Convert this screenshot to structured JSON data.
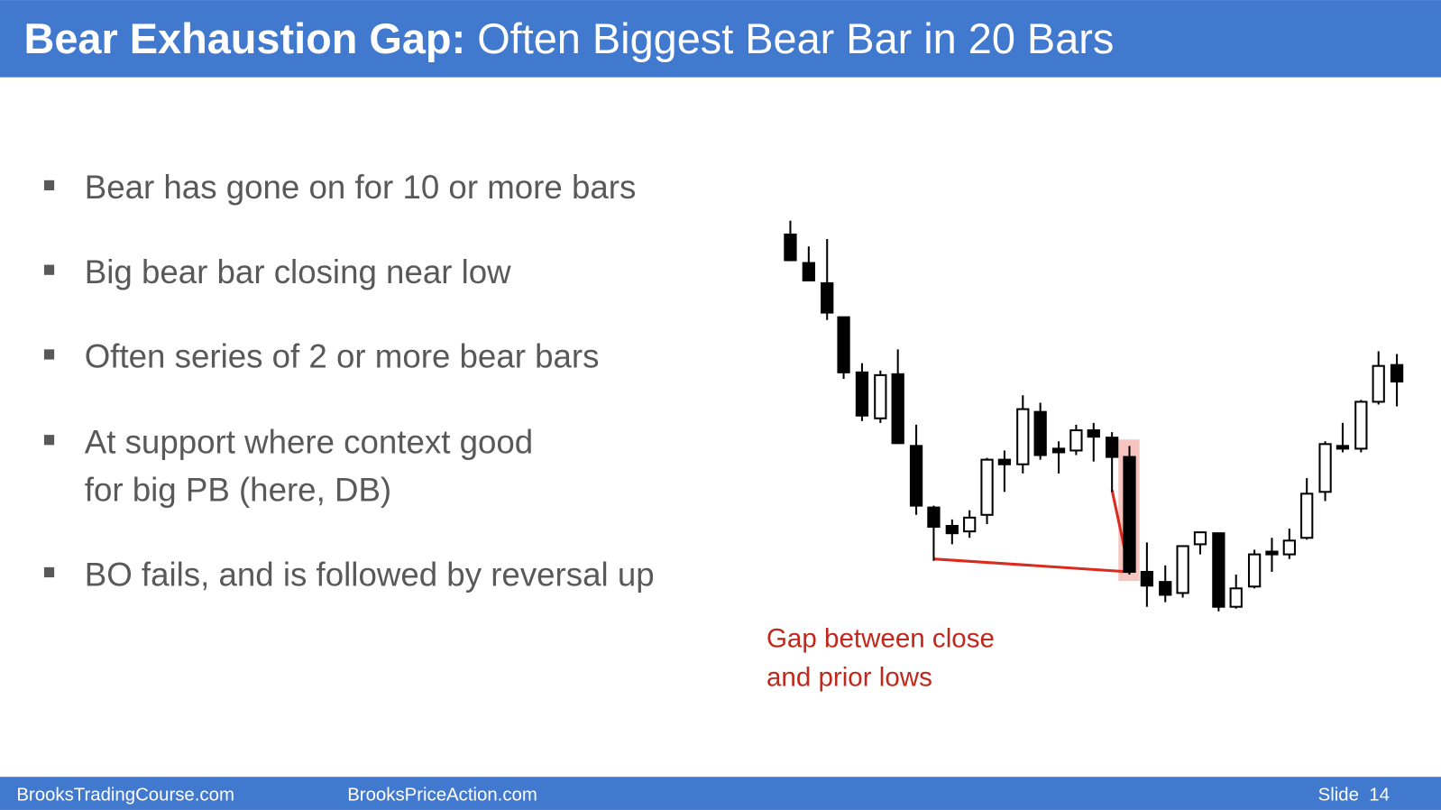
{
  "header": {
    "title_bold": "Bear Exhaustion Gap:",
    "title_rest": "Often Biggest Bear Bar in 20 Bars"
  },
  "bullets": [
    [
      "Bear has gone on for 10 or more bars"
    ],
    [
      "Big bear bar closing near low"
    ],
    [
      "Often series of 2 or more bear bars"
    ],
    [
      "At support where context good",
      "for big PB (here, DB)"
    ],
    [
      "BO fails, and is followed by reversal up"
    ]
  ],
  "annotation": [
    "Gap between close",
    "and prior lows"
  ],
  "footer": {
    "left": "BrooksTradingCourse.com",
    "center": "BrooksPriceAction.com",
    "slide": "Slide  14"
  }
}
